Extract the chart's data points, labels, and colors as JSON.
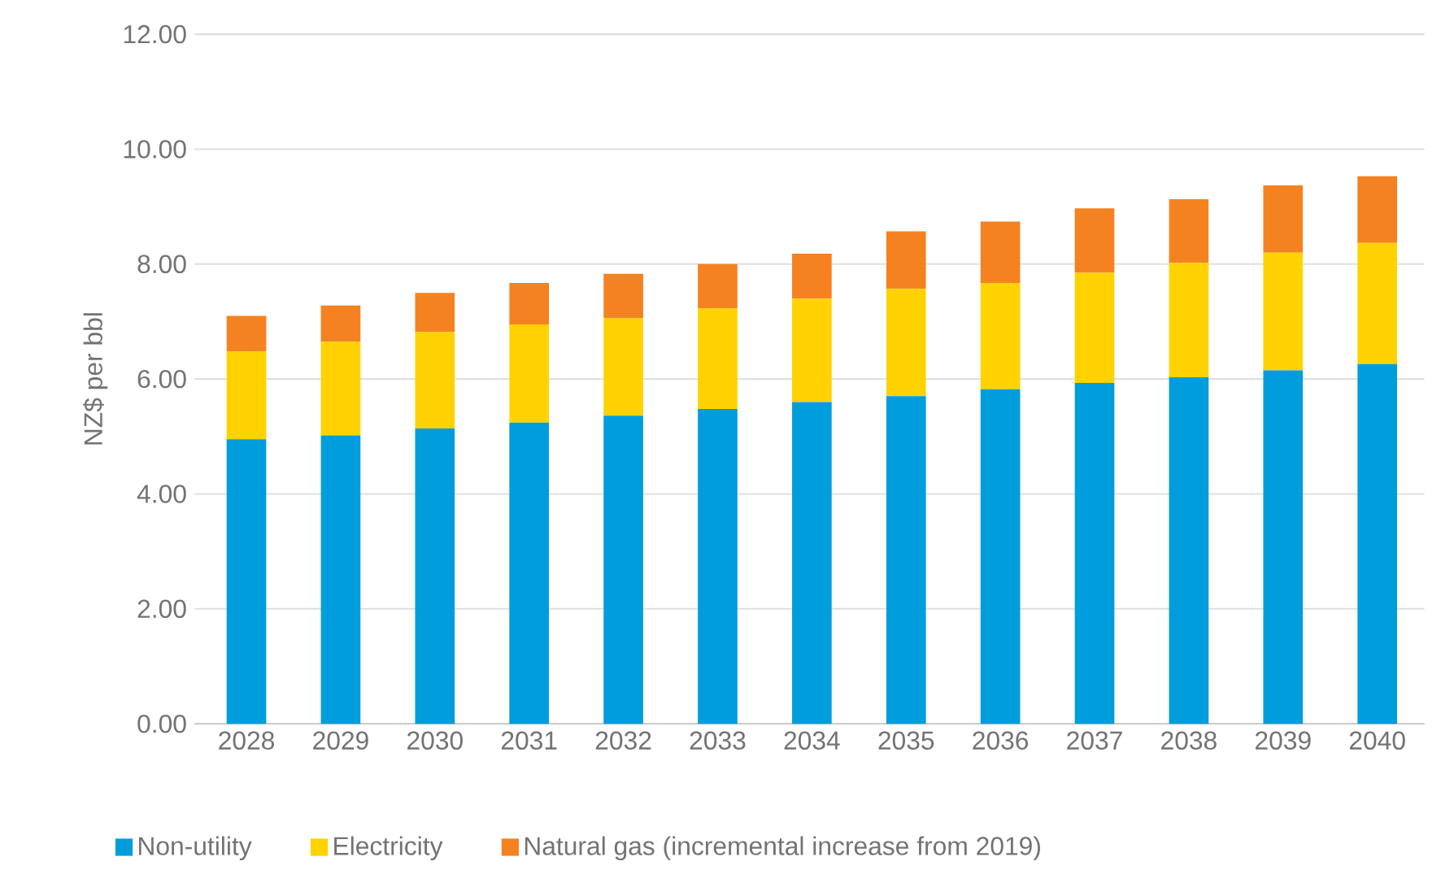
{
  "chart_data": {
    "type": "bar",
    "stacked": true,
    "ylabel": "NZ$ per bbl",
    "categories": [
      "2028",
      "2029",
      "2030",
      "2031",
      "2032",
      "2033",
      "2034",
      "2035",
      "2036",
      "2037",
      "2038",
      "2039",
      "2040"
    ],
    "series": [
      {
        "name": "Non-utility",
        "color": "#009ddc",
        "values": [
          4.95,
          5.02,
          5.14,
          5.24,
          5.36,
          5.48,
          5.6,
          5.7,
          5.82,
          5.93,
          6.03,
          6.15,
          6.26
        ]
      },
      {
        "name": "Electricity",
        "color": "#ffd200",
        "values": [
          1.53,
          1.63,
          1.68,
          1.71,
          1.7,
          1.75,
          1.8,
          1.87,
          1.85,
          1.92,
          1.99,
          2.05,
          2.11
        ]
      },
      {
        "name": "Natural gas (incremental increase from 2019)",
        "color": "#f58220",
        "values": [
          0.62,
          0.63,
          0.68,
          0.72,
          0.77,
          0.77,
          0.78,
          1.0,
          1.07,
          1.12,
          1.11,
          1.17,
          1.16
        ]
      }
    ],
    "ylim": [
      0,
      12
    ],
    "yticks": [
      {
        "value": 0,
        "label": "0.00"
      },
      {
        "value": 2,
        "label": "2.00"
      },
      {
        "value": 4,
        "label": "4.00"
      },
      {
        "value": 6,
        "label": "6.00"
      },
      {
        "value": 8,
        "label": "8.00"
      },
      {
        "value": 10,
        "label": "10.00"
      },
      {
        "value": 12,
        "label": "12.00"
      }
    ],
    "grid": "y",
    "legend": "bottom"
  }
}
